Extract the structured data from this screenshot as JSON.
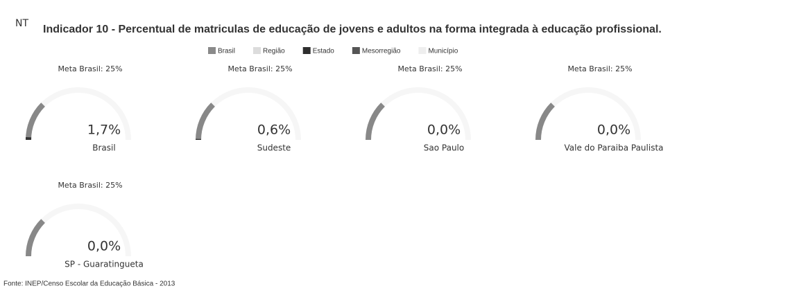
{
  "header": {
    "badge": "NT",
    "title": "Indicador 10 - Percentual de matriculas de educação de jovens e adultos na forma integrada à educação profissional."
  },
  "legend": [
    {
      "name": "Brasil",
      "color": "#8a8a8a"
    },
    {
      "name": "Região",
      "color": "#dcdcdc"
    },
    {
      "name": "Estado",
      "color": "#2e2e2e"
    },
    {
      "name": "Mesorregião",
      "color": "#555555"
    },
    {
      "name": "Município",
      "color": "#eeeeee"
    }
  ],
  "chart_data": [
    {
      "type": "gauge",
      "title": "Meta Brasil: 25%",
      "target": 25,
      "name": "Brasil",
      "values": [
        1.7
      ],
      "value_labels": [
        "1,7%"
      ],
      "ylim": [
        0,
        100
      ],
      "color": "#8a8a8a"
    },
    {
      "type": "gauge",
      "title": "Meta Brasil: 25%",
      "target": 25,
      "name": "Sudeste",
      "values": [
        0.6
      ],
      "value_labels": [
        "0,6%"
      ],
      "ylim": [
        0,
        100
      ],
      "color": "#dcdcdc"
    },
    {
      "type": "gauge",
      "title": "Meta Brasil: 25%",
      "target": 25,
      "name": "Sao Paulo",
      "values": [
        0.0
      ],
      "value_labels": [
        "0,0%"
      ],
      "ylim": [
        0,
        100
      ],
      "color": "#2e2e2e"
    },
    {
      "type": "gauge",
      "title": "Meta Brasil: 25%",
      "target": 25,
      "name": "Vale do Paraiba Paulista",
      "values": [
        0.0
      ],
      "value_labels": [
        "0,0%"
      ],
      "ylim": [
        0,
        100
      ],
      "color": "#555555"
    },
    {
      "type": "gauge",
      "title": "Meta Brasil: 25%",
      "target": 25,
      "name": "SP - Guaratingueta",
      "values": [
        0.0
      ],
      "value_labels": [
        "0,0%"
      ],
      "ylim": [
        0,
        100
      ],
      "color": "#eeeeee"
    }
  ],
  "footer": "Fonte: INEP/Censo Escolar da Educação Básica - 2013"
}
